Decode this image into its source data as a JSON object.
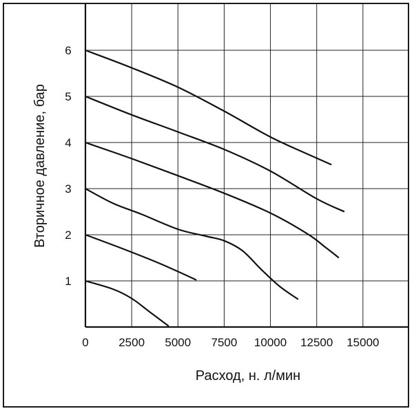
{
  "chart_data": {
    "type": "line",
    "title": "",
    "xlabel": "Расход, н. л/мин",
    "ylabel": "Вторичное давление, бар",
    "xlim": [
      0,
      17500
    ],
    "ylim": [
      0,
      7
    ],
    "grid": true,
    "x_ticks": [
      0,
      2500,
      5000,
      7500,
      10000,
      12500,
      15000
    ],
    "x_tick_labels": [
      "0",
      "2500",
      "5000",
      "7500",
      "10000",
      "12500",
      "15000"
    ],
    "y_ticks": [
      1,
      2,
      3,
      4,
      5,
      6
    ],
    "y_tick_labels": [
      "1",
      "2",
      "3",
      "4",
      "5",
      "6"
    ],
    "series": [
      {
        "points": [
          [
            0,
            1.0
          ],
          [
            1500,
            0.82
          ],
          [
            2500,
            0.62
          ],
          [
            3500,
            0.32
          ],
          [
            4500,
            0.02
          ]
        ]
      },
      {
        "points": [
          [
            0,
            2.0
          ],
          [
            2000,
            1.7
          ],
          [
            4000,
            1.38
          ],
          [
            6000,
            1.02
          ]
        ]
      },
      {
        "points": [
          [
            0,
            3.0
          ],
          [
            1500,
            2.68
          ],
          [
            3000,
            2.45
          ],
          [
            5000,
            2.12
          ],
          [
            6500,
            1.97
          ],
          [
            7500,
            1.87
          ],
          [
            8500,
            1.65
          ],
          [
            9500,
            1.25
          ],
          [
            10500,
            0.88
          ],
          [
            11500,
            0.6
          ]
        ]
      },
      {
        "points": [
          [
            0,
            4.0
          ],
          [
            2500,
            3.65
          ],
          [
            5000,
            3.28
          ],
          [
            7500,
            2.9
          ],
          [
            10000,
            2.47
          ],
          [
            12000,
            2.02
          ],
          [
            13000,
            1.72
          ],
          [
            13700,
            1.5
          ]
        ]
      },
      {
        "points": [
          [
            0,
            5.0
          ],
          [
            2500,
            4.6
          ],
          [
            5000,
            4.23
          ],
          [
            7500,
            3.85
          ],
          [
            10000,
            3.38
          ],
          [
            12500,
            2.78
          ],
          [
            14000,
            2.5
          ]
        ]
      },
      {
        "points": [
          [
            0,
            6.0
          ],
          [
            2500,
            5.62
          ],
          [
            5000,
            5.2
          ],
          [
            7500,
            4.68
          ],
          [
            10000,
            4.12
          ],
          [
            12000,
            3.75
          ],
          [
            13300,
            3.52
          ]
        ]
      }
    ]
  }
}
